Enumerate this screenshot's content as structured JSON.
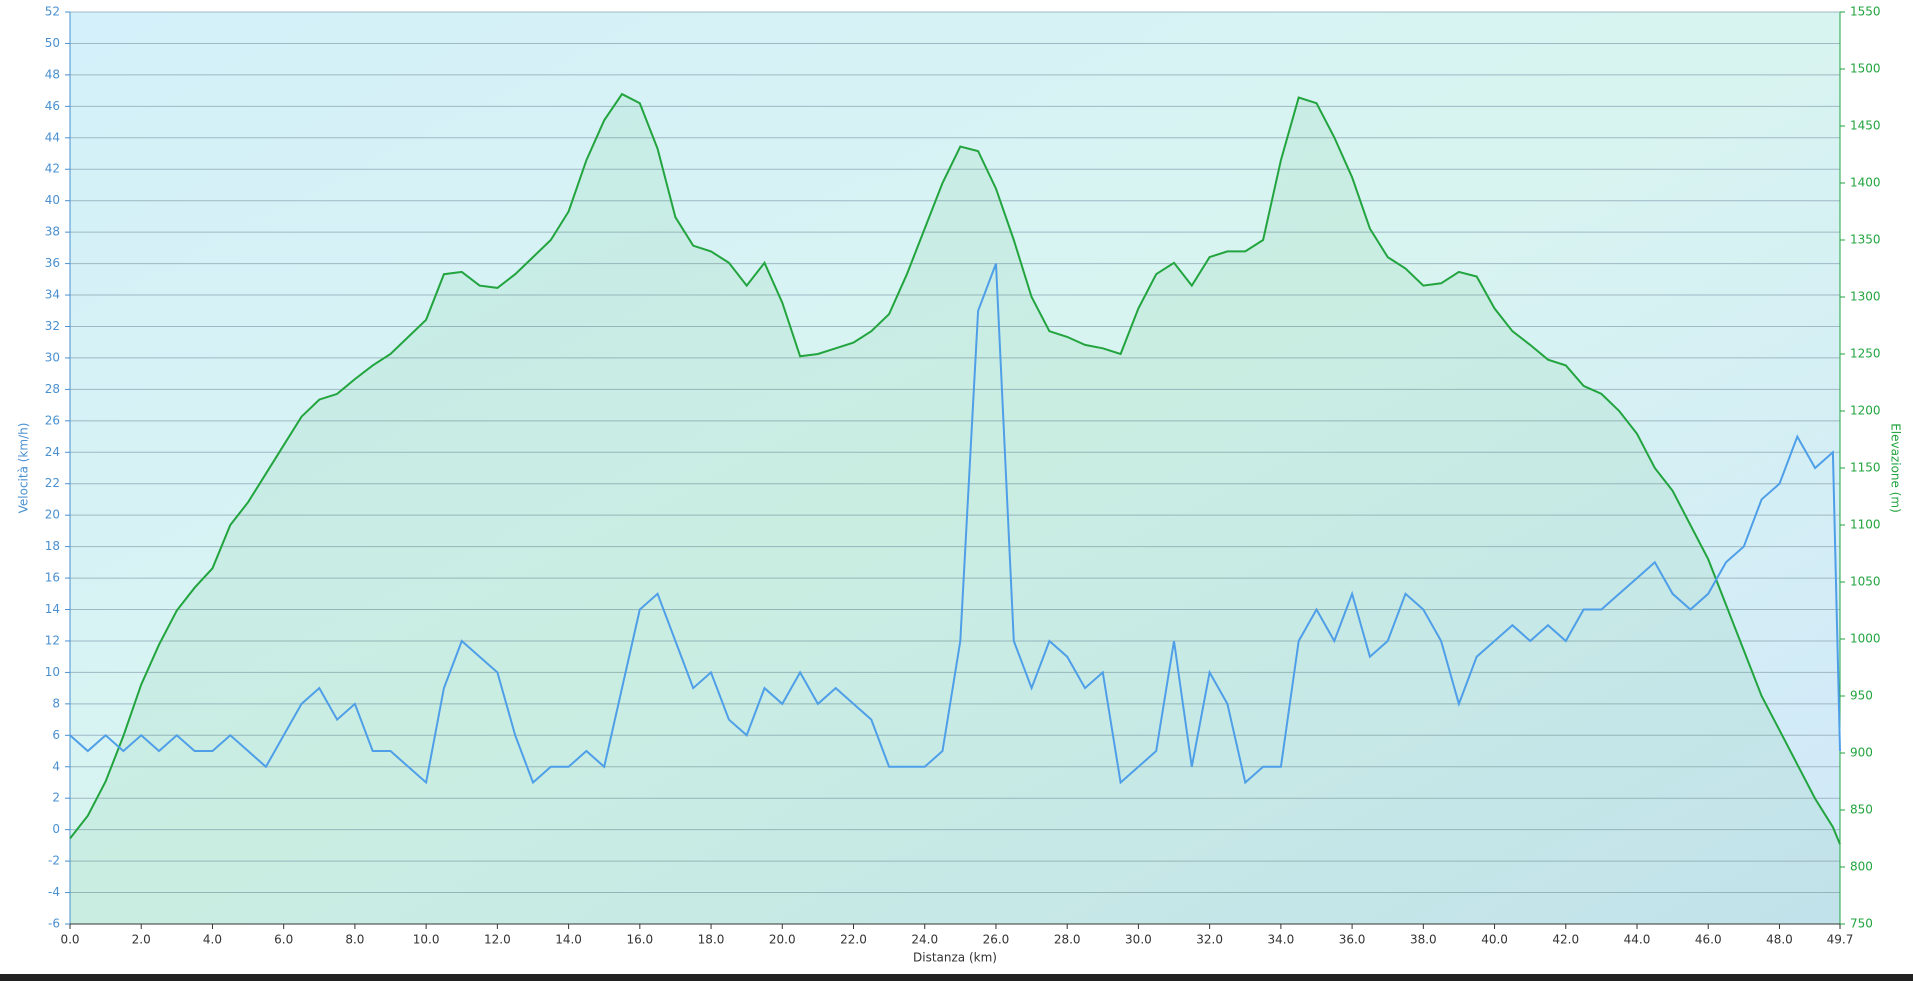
{
  "chart_data": {
    "type": "line",
    "x_label": "Distanza  (km)",
    "y_label": "Velocità (km/h)",
    "y2_label": "Elevazione (m)",
    "xlim": [
      0,
      49.7
    ],
    "xticks": [
      {
        "value": 0,
        "label": "0.0"
      },
      {
        "value": 2,
        "label": "2.0"
      },
      {
        "value": 4,
        "label": "4.0"
      },
      {
        "value": 6,
        "label": "6.0"
      },
      {
        "value": 8,
        "label": "8.0"
      },
      {
        "value": 10,
        "label": "10.0"
      },
      {
        "value": 12,
        "label": "12.0"
      },
      {
        "value": 14,
        "label": "14.0"
      },
      {
        "value": 16,
        "label": "16.0"
      },
      {
        "value": 18,
        "label": "18.0"
      },
      {
        "value": 20,
        "label": "20.0"
      },
      {
        "value": 22,
        "label": "22.0"
      },
      {
        "value": 24,
        "label": "24.0"
      },
      {
        "value": 26,
        "label": "26.0"
      },
      {
        "value": 28,
        "label": "28.0"
      },
      {
        "value": 30,
        "label": "30.0"
      },
      {
        "value": 32,
        "label": "32.0"
      },
      {
        "value": 34,
        "label": "34.0"
      },
      {
        "value": 36,
        "label": "36.0"
      },
      {
        "value": 38,
        "label": "38.0"
      },
      {
        "value": 40,
        "label": "40.0"
      },
      {
        "value": 42,
        "label": "42.0"
      },
      {
        "value": 44,
        "label": "44.0"
      },
      {
        "value": 46,
        "label": "46.0"
      },
      {
        "value": 48,
        "label": "48.0"
      },
      49.7
    ],
    "ylim": [
      -6,
      52
    ],
    "yticks": [
      -6,
      -4,
      -2,
      0,
      2,
      4,
      6,
      8,
      10,
      12,
      14,
      16,
      18,
      20,
      22,
      24,
      26,
      28,
      30,
      32,
      34,
      36,
      38,
      40,
      42,
      44,
      46,
      48,
      50,
      52
    ],
    "y2lim": [
      750,
      1550
    ],
    "y2ticks": [
      750,
      800,
      850,
      900,
      950,
      1000,
      1050,
      1100,
      1150,
      1200,
      1250,
      1300,
      1350,
      1400,
      1450,
      1500,
      1550
    ],
    "grid": true,
    "x": [
      0,
      0.5,
      1,
      1.5,
      2,
      2.5,
      3,
      3.5,
      4,
      4.5,
      5,
      5.5,
      6,
      6.5,
      7,
      7.5,
      8,
      8.5,
      9,
      9.5,
      10,
      10.5,
      11,
      11.5,
      12,
      12.5,
      13,
      13.5,
      14,
      14.5,
      15,
      15.5,
      16,
      16.5,
      17,
      17.5,
      18,
      18.5,
      19,
      19.5,
      20,
      20.5,
      21,
      21.5,
      22,
      22.5,
      23,
      23.5,
      24,
      24.5,
      25,
      25.5,
      26,
      26.5,
      27,
      27.5,
      28,
      28.5,
      29,
      29.5,
      30,
      30.5,
      31,
      31.5,
      32,
      32.5,
      33,
      33.5,
      34,
      34.5,
      35,
      35.5,
      36,
      36.5,
      37,
      37.5,
      38,
      38.5,
      39,
      39.5,
      40,
      40.5,
      41,
      41.5,
      42,
      42.5,
      43,
      43.5,
      44,
      44.5,
      45,
      45.5,
      46,
      46.5,
      47,
      47.5,
      48,
      48.5,
      49,
      49.5,
      49.7
    ],
    "series": [
      {
        "name": "Elevazione",
        "color": "#22a43f",
        "axis": "y2",
        "fill": true,
        "values": [
          825,
          845,
          875,
          915,
          960,
          995,
          1025,
          1045,
          1062,
          1100,
          1120,
          1145,
          1170,
          1195,
          1210,
          1215,
          1228,
          1240,
          1250,
          1265,
          1280,
          1320,
          1322,
          1310,
          1308,
          1320,
          1335,
          1350,
          1375,
          1420,
          1455,
          1478,
          1470,
          1430,
          1370,
          1345,
          1340,
          1330,
          1310,
          1330,
          1295,
          1248,
          1250,
          1255,
          1260,
          1270,
          1285,
          1320,
          1360,
          1400,
          1432,
          1428,
          1395,
          1350,
          1300,
          1270,
          1265,
          1258,
          1255,
          1250,
          1290,
          1320,
          1330,
          1310,
          1335,
          1340,
          1340,
          1350,
          1420,
          1475,
          1470,
          1440,
          1405,
          1360,
          1335,
          1325,
          1310,
          1312,
          1322,
          1318,
          1290,
          1270,
          1258,
          1245,
          1240,
          1222,
          1215,
          1200,
          1180,
          1150,
          1130,
          1100,
          1070,
          1030,
          990,
          950,
          920,
          890,
          860,
          835,
          820
        ]
      },
      {
        "name": "Velocità",
        "color": "#4f9fe8",
        "values": [
          6,
          5,
          6,
          5,
          6,
          5,
          6,
          5,
          5,
          6,
          5,
          4,
          6,
          8,
          9,
          7,
          8,
          5,
          5,
          4,
          3,
          9,
          12,
          11,
          10,
          6,
          3,
          4,
          4,
          5,
          4,
          9,
          14,
          15,
          12,
          9,
          10,
          7,
          6,
          9,
          8,
          10,
          8,
          9,
          8,
          7,
          4,
          4,
          4,
          5,
          12,
          33,
          36,
          12,
          9,
          12,
          11,
          9,
          10,
          3,
          4,
          5,
          12,
          4,
          10,
          8,
          3,
          4,
          4,
          12,
          14,
          12,
          15,
          11,
          12,
          15,
          14,
          12,
          8,
          11,
          12,
          13,
          12,
          13,
          12,
          14,
          14,
          15,
          16,
          17,
          15,
          14,
          15,
          17,
          18,
          21,
          22,
          25,
          23,
          24,
          5
        ]
      }
    ]
  }
}
